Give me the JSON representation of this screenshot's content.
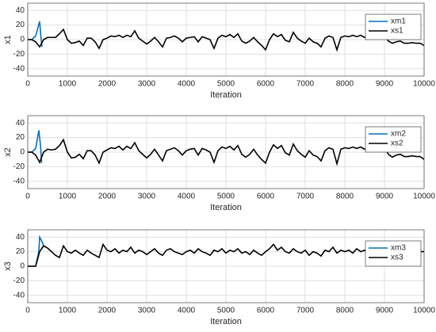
{
  "chart_data": [
    {
      "type": "line",
      "xlabel": "Iteration",
      "ylabel": "x1",
      "xlim": [
        0,
        10000
      ],
      "ylim": [
        -50,
        50
      ],
      "xticks": [
        0,
        1000,
        2000,
        3000,
        4000,
        5000,
        6000,
        7000,
        8000,
        9000,
        10000
      ],
      "yticks": [
        -40,
        -20,
        0,
        20,
        40
      ],
      "grid": true,
      "legend": "upper right",
      "x": [
        0,
        100,
        200,
        300,
        400,
        500,
        600,
        700,
        800,
        900,
        1000,
        1100,
        1200,
        1300,
        1400,
        1500,
        1600,
        1700,
        1800,
        1900,
        2000,
        2100,
        2200,
        2300,
        2400,
        2500,
        2600,
        2700,
        2800,
        2900,
        3000,
        3100,
        3200,
        3300,
        3400,
        3500,
        3600,
        3700,
        3800,
        3900,
        4000,
        4100,
        4200,
        4300,
        4400,
        4500,
        4600,
        4700,
        4800,
        4900,
        5000,
        5100,
        5200,
        5300,
        5400,
        5500,
        5600,
        5700,
        5800,
        5900,
        6000,
        6100,
        6200,
        6300,
        6400,
        6500,
        6600,
        6700,
        6800,
        6900,
        7000,
        7100,
        7200,
        7300,
        7400,
        7500,
        7600,
        7700,
        7800,
        7900,
        8000,
        8100,
        8200,
        8300,
        8400,
        8500,
        8600,
        8700,
        8800,
        8900,
        9000,
        9100,
        9200,
        9300,
        9400,
        9500,
        9600,
        9700,
        9800,
        9900,
        10000
      ],
      "series": [
        {
          "name": "xm1",
          "color": "#0072bd",
          "x": [
            0,
            100,
            200,
            250,
            300,
            330,
            360
          ],
          "values": [
            0,
            0,
            5,
            15,
            25,
            5,
            -10
          ]
        },
        {
          "name": "xs1",
          "color": "#000000",
          "values": [
            0,
            0,
            -3,
            -10,
            0,
            3,
            3,
            3,
            8,
            14,
            0,
            -5,
            -4,
            -2,
            -8,
            2,
            2,
            -3,
            -12,
            0,
            2,
            5,
            4,
            6,
            3,
            6,
            4,
            12,
            2,
            -2,
            -6,
            -2,
            3,
            -3,
            -10,
            2,
            3,
            5,
            2,
            -3,
            2,
            3,
            4,
            -3,
            4,
            2,
            0,
            -12,
            2,
            6,
            4,
            7,
            3,
            8,
            -2,
            -5,
            -2,
            3,
            -3,
            -8,
            -14,
            0,
            8,
            4,
            7,
            -1,
            -3,
            10,
            2,
            -2,
            -5,
            2,
            -3,
            -5,
            -10,
            2,
            5,
            3,
            -14,
            3,
            5,
            4,
            6,
            4,
            6,
            3,
            5,
            6,
            4,
            10,
            5,
            -2,
            -5,
            -3,
            -2,
            -5,
            -5,
            -4,
            -5,
            -5,
            -8
          ]
        }
      ]
    },
    {
      "type": "line",
      "xlabel": "Iteration",
      "ylabel": "x2",
      "xlim": [
        0,
        10000
      ],
      "ylim": [
        -50,
        50
      ],
      "xticks": [
        0,
        1000,
        2000,
        3000,
        4000,
        5000,
        6000,
        7000,
        8000,
        9000,
        10000
      ],
      "yticks": [
        -40,
        -20,
        0,
        20,
        40
      ],
      "grid": true,
      "legend": "upper right",
      "x": [
        0,
        100,
        200,
        300,
        400,
        500,
        600,
        700,
        800,
        900,
        1000,
        1100,
        1200,
        1300,
        1400,
        1500,
        1600,
        1700,
        1800,
        1900,
        2000,
        2100,
        2200,
        2300,
        2400,
        2500,
        2600,
        2700,
        2800,
        2900,
        3000,
        3100,
        3200,
        3300,
        3400,
        3500,
        3600,
        3700,
        3800,
        3900,
        4000,
        4100,
        4200,
        4300,
        4400,
        4500,
        4600,
        4700,
        4800,
        4900,
        5000,
        5100,
        5200,
        5300,
        5400,
        5500,
        5600,
        5700,
        5800,
        5900,
        6000,
        6100,
        6200,
        6300,
        6400,
        6500,
        6600,
        6700,
        6800,
        6900,
        7000,
        7100,
        7200,
        7300,
        7400,
        7500,
        7600,
        7700,
        7800,
        7900,
        8000,
        8100,
        8200,
        8300,
        8400,
        8500,
        8600,
        8700,
        8800,
        8900,
        9000,
        9100,
        9200,
        9300,
        9400,
        9500,
        9600,
        9700,
        9800,
        9900,
        10000
      ],
      "series": [
        {
          "name": "xm2",
          "color": "#0072bd",
          "x": [
            0,
            100,
            200,
            280,
            320,
            350
          ],
          "values": [
            0,
            0,
            5,
            30,
            10,
            -15
          ]
        },
        {
          "name": "xs2",
          "color": "#000000",
          "values": [
            0,
            0,
            -4,
            -14,
            0,
            4,
            3,
            4,
            9,
            17,
            0,
            -8,
            -7,
            -3,
            -9,
            2,
            2,
            -4,
            -15,
            0,
            3,
            6,
            5,
            8,
            3,
            8,
            5,
            13,
            2,
            -3,
            -8,
            -3,
            4,
            -4,
            -12,
            2,
            4,
            6,
            2,
            -4,
            2,
            4,
            5,
            -4,
            5,
            3,
            0,
            -14,
            2,
            7,
            5,
            8,
            3,
            9,
            -3,
            -7,
            -3,
            4,
            -4,
            -10,
            -15,
            0,
            10,
            5,
            9,
            -1,
            -4,
            11,
            2,
            -3,
            -7,
            2,
            -4,
            -6,
            -12,
            2,
            6,
            4,
            -16,
            4,
            6,
            5,
            7,
            5,
            7,
            4,
            6,
            7,
            5,
            11,
            6,
            -3,
            -7,
            -4,
            -3,
            -6,
            -6,
            -5,
            -6,
            -6,
            -10
          ]
        }
      ]
    },
    {
      "type": "line",
      "xlabel": "Iteration",
      "ylabel": "x3",
      "xlim": [
        0,
        10000
      ],
      "ylim": [
        -50,
        50
      ],
      "xticks": [
        0,
        1000,
        2000,
        3000,
        4000,
        5000,
        6000,
        7000,
        8000,
        9000,
        10000
      ],
      "yticks": [
        -40,
        -20,
        0,
        20,
        40
      ],
      "grid": true,
      "legend": "upper right",
      "x": [
        0,
        100,
        200,
        300,
        400,
        500,
        600,
        700,
        800,
        900,
        1000,
        1100,
        1200,
        1300,
        1400,
        1500,
        1600,
        1700,
        1800,
        1900,
        2000,
        2100,
        2200,
        2300,
        2400,
        2500,
        2600,
        2700,
        2800,
        2900,
        3000,
        3100,
        3200,
        3300,
        3400,
        3500,
        3600,
        3700,
        3800,
        3900,
        4000,
        4100,
        4200,
        4300,
        4400,
        4500,
        4600,
        4700,
        4800,
        4900,
        5000,
        5100,
        5200,
        5300,
        5400,
        5500,
        5600,
        5700,
        5800,
        5900,
        6000,
        6100,
        6200,
        6300,
        6400,
        6500,
        6600,
        6700,
        6800,
        6900,
        7000,
        7100,
        7200,
        7300,
        7400,
        7500,
        7600,
        7700,
        7800,
        7900,
        8000,
        8100,
        8200,
        8300,
        8400,
        8500,
        8600,
        8700,
        8800,
        8900,
        9000,
        9100,
        9200,
        9300,
        9400,
        9500,
        9600,
        9700,
        9800,
        9900,
        10000
      ],
      "series": [
        {
          "name": "xm3",
          "color": "#0072bd",
          "x": [
            0,
            100,
            200,
            280,
            300,
            350,
            400
          ],
          "values": [
            0,
            0,
            0,
            20,
            40,
            35,
            28
          ]
        },
        {
          "name": "xs3",
          "color": "#000000",
          "values": [
            0,
            0,
            0,
            20,
            28,
            25,
            20,
            15,
            12,
            28,
            20,
            18,
            22,
            18,
            15,
            22,
            18,
            15,
            12,
            30,
            22,
            20,
            24,
            18,
            22,
            20,
            26,
            18,
            22,
            20,
            16,
            20,
            24,
            18,
            15,
            22,
            24,
            20,
            18,
            16,
            20,
            22,
            18,
            24,
            20,
            18,
            15,
            22,
            20,
            24,
            18,
            22,
            20,
            24,
            18,
            20,
            16,
            22,
            18,
            15,
            20,
            24,
            30,
            22,
            26,
            20,
            18,
            24,
            20,
            18,
            22,
            15,
            20,
            18,
            14,
            22,
            20,
            26,
            18,
            22,
            20,
            22,
            18,
            24,
            20,
            22,
            18,
            24,
            20,
            28,
            20,
            16,
            22,
            18,
            20,
            22,
            18,
            22,
            18,
            20,
            20
          ]
        }
      ]
    }
  ]
}
